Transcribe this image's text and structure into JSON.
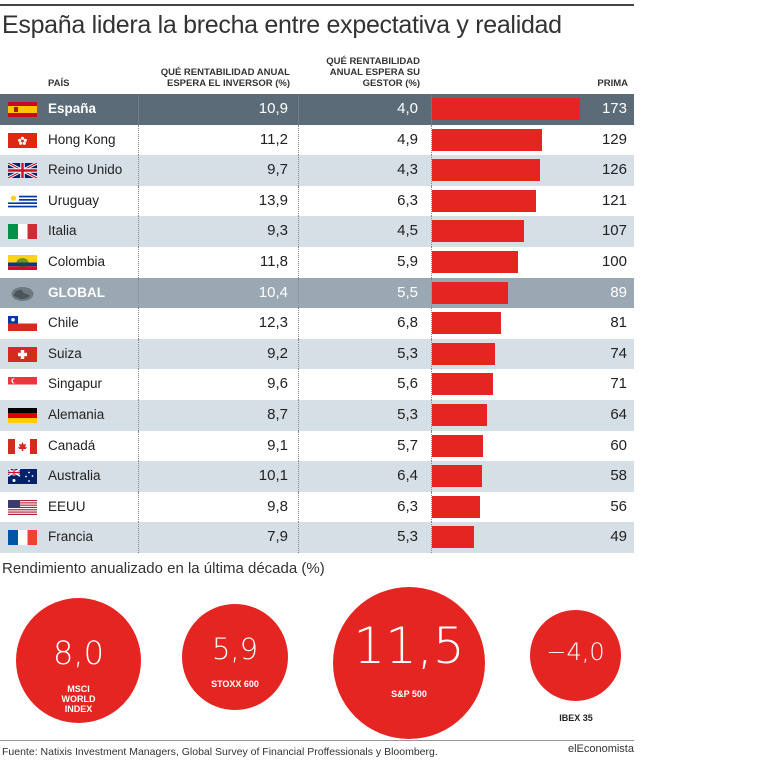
{
  "title": "España lidera la brecha entre expectativa y realidad",
  "headers": {
    "pais": "PAÍS",
    "inversor": "QUÉ RENTABILIDAD ANUAL ESPERA EL INVERSOR (%)",
    "gestor": "QUÉ RENTABILIDAD ANUAL ESPERA SU GESTOR (%)",
    "prima": "PRIMA"
  },
  "chart_data": [
    {
      "type": "table",
      "title": "España lidera la brecha entre expectativa y realidad",
      "columns": [
        "PAÍS",
        "QUÉ RENTABILIDAD ANUAL ESPERA EL INVERSOR (%)",
        "QUÉ RENTABILIDAD ANUAL ESPERA SU GESTOR (%)",
        "PRIMA"
      ],
      "bar_max": 173,
      "rows": [
        {
          "pais": "España",
          "inversor": "10,9",
          "gestor": "4,0",
          "prima": 173,
          "style": "hl",
          "flag": "spain"
        },
        {
          "pais": "Hong Kong",
          "inversor": "11,2",
          "gestor": "4,9",
          "prima": 129,
          "style": "",
          "flag": "hongkong"
        },
        {
          "pais": "Reino Unido",
          "inversor": "9,7",
          "gestor": "4,3",
          "prima": 126,
          "style": "alt",
          "flag": "uk"
        },
        {
          "pais": "Uruguay",
          "inversor": "13,9",
          "gestor": "6,3",
          "prima": 121,
          "style": "",
          "flag": "uruguay"
        },
        {
          "pais": "Italia",
          "inversor": "9,3",
          "gestor": "4,5",
          "prima": 107,
          "style": "alt",
          "flag": "italy"
        },
        {
          "pais": "Colombia",
          "inversor": "11,8",
          "gestor": "5,9",
          "prima": 100,
          "style": "",
          "flag": "colombia"
        },
        {
          "pais": "GLOBAL",
          "inversor": "10,4",
          "gestor": "5,5",
          "prima": 89,
          "style": "gl",
          "flag": "globe"
        },
        {
          "pais": "Chile",
          "inversor": "12,3",
          "gestor": "6,8",
          "prima": 81,
          "style": "",
          "flag": "chile"
        },
        {
          "pais": "Suiza",
          "inversor": "9,2",
          "gestor": "5,3",
          "prima": 74,
          "style": "alt",
          "flag": "switzerland"
        },
        {
          "pais": "Singapur",
          "inversor": "9,6",
          "gestor": "5,6",
          "prima": 71,
          "style": "",
          "flag": "singapore"
        },
        {
          "pais": "Alemania",
          "inversor": "8,7",
          "gestor": "5,3",
          "prima": 64,
          "style": "alt",
          "flag": "germany"
        },
        {
          "pais": "Canadá",
          "inversor": "9,1",
          "gestor": "5,7",
          "prima": 60,
          "style": "",
          "flag": "canada"
        },
        {
          "pais": "Australia",
          "inversor": "10,1",
          "gestor": "6,4",
          "prima": 58,
          "style": "alt",
          "flag": "australia"
        },
        {
          "pais": "EEUU",
          "inversor": "9,8",
          "gestor": "6,3",
          "prima": 56,
          "style": "",
          "flag": "usa"
        },
        {
          "pais": "Francia",
          "inversor": "7,9",
          "gestor": "5,3",
          "prima": 49,
          "style": "alt",
          "flag": "france"
        }
      ]
    },
    {
      "type": "bubble",
      "title": "Rendimiento anualizado en la última década (%)",
      "items": [
        {
          "label": "MSCI WORLD INDEX",
          "value": "8,0"
        },
        {
          "label": "STOXX 600",
          "value": "5,9"
        },
        {
          "label": "S&P 500",
          "value": "11,5"
        },
        {
          "label": "IBEX 35",
          "value": "−4,0"
        }
      ]
    }
  ],
  "subtitle": "Rendimiento anualizado en la última década (%)",
  "colors": {
    "bar": "#e52521",
    "highlight": "#5b6c78",
    "global": "#9aa8b3",
    "alt": "#d6dfe6"
  },
  "source": "Fuente: Natixis Investment Managers, Global Survey of Financial Proffessionals y Bloomberg.",
  "brand": "elEconomista"
}
